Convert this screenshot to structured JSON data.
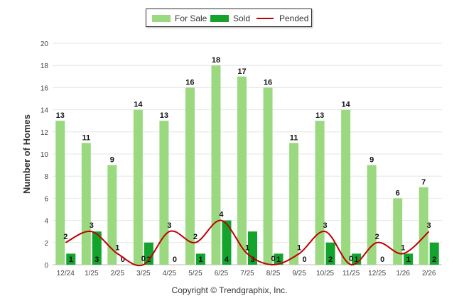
{
  "chart_data": {
    "type": "bar",
    "categories": [
      "12/24",
      "1/25",
      "2/25",
      "3/25",
      "4/25",
      "5/25",
      "6/25",
      "7/25",
      "8/25",
      "9/25",
      "10/25",
      "11/25",
      "12/25",
      "1/26",
      "2/26"
    ],
    "series": [
      {
        "name": "For Sale",
        "type": "bar",
        "color": "#9ad97f",
        "values": [
          13,
          11,
          9,
          14,
          13,
          16,
          18,
          17,
          16,
          11,
          13,
          14,
          9,
          6,
          7
        ]
      },
      {
        "name": "Sold",
        "type": "bar",
        "color": "#14a32d",
        "values": [
          1,
          3,
          0,
          2,
          0,
          1,
          4,
          3,
          1,
          0,
          2,
          1,
          0,
          1,
          2
        ]
      },
      {
        "name": "Pended",
        "type": "line",
        "color": "#c00000",
        "values": [
          2,
          3,
          1,
          0,
          3,
          2,
          4,
          1,
          0,
          1,
          3,
          0,
          2,
          1,
          3
        ]
      }
    ],
    "ylabel": "Number of Homes",
    "xlabel": "",
    "ylim": [
      0,
      20
    ],
    "yticks": [
      0,
      2,
      4,
      6,
      8,
      10,
      12,
      14,
      16,
      18,
      20
    ],
    "grid": true,
    "legend": "top-center"
  },
  "legend": {
    "for_sale": "For Sale",
    "sold": "Sold",
    "pended": "Pended"
  },
  "footer": {
    "copyright": "Copyright © Trendgraphix, Inc."
  }
}
